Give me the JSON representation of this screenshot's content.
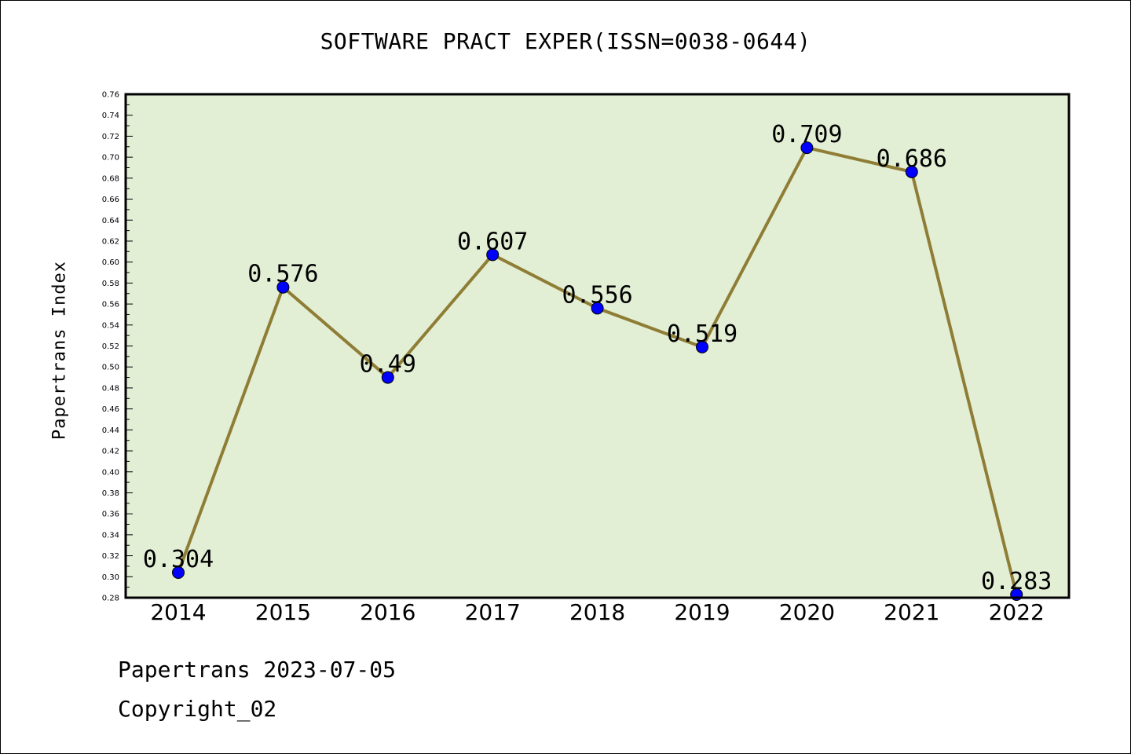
{
  "chart_data": {
    "type": "line",
    "title": "SOFTWARE PRACT EXPER(ISSN=0038-0644)",
    "xlabel": "",
    "ylabel": "Papertrans Index",
    "categories": [
      "2014",
      "2015",
      "2016",
      "2017",
      "2018",
      "2019",
      "2020",
      "2021",
      "2022"
    ],
    "series": [
      {
        "values": [
          0.304,
          0.576,
          0.49,
          0.607,
          0.556,
          0.519,
          0.709,
          0.686,
          0.283
        ],
        "labels": [
          "0.304",
          "0.576",
          "0.49",
          "0.607",
          "0.556",
          "0.519",
          "0.709",
          "0.686",
          "0.283"
        ]
      }
    ],
    "ylim": [
      0.28,
      0.76
    ],
    "yticks": [
      "0.28",
      "0.30",
      "0.32",
      "0.34",
      "0.36",
      "0.38",
      "0.40",
      "0.42",
      "0.44",
      "0.46",
      "0.48",
      "0.50",
      "0.52",
      "0.54",
      "0.56",
      "0.58",
      "0.60",
      "0.62",
      "0.64",
      "0.66",
      "0.68",
      "0.70",
      "0.72",
      "0.74",
      "0.76"
    ],
    "grid": false,
    "colors": {
      "plot_background": "#e2efd5",
      "line": "#8f7d35",
      "marker": "#0000ff"
    }
  },
  "footer": {
    "line1": "Papertrans 2023-07-05",
    "line2": "Copyright_02"
  }
}
